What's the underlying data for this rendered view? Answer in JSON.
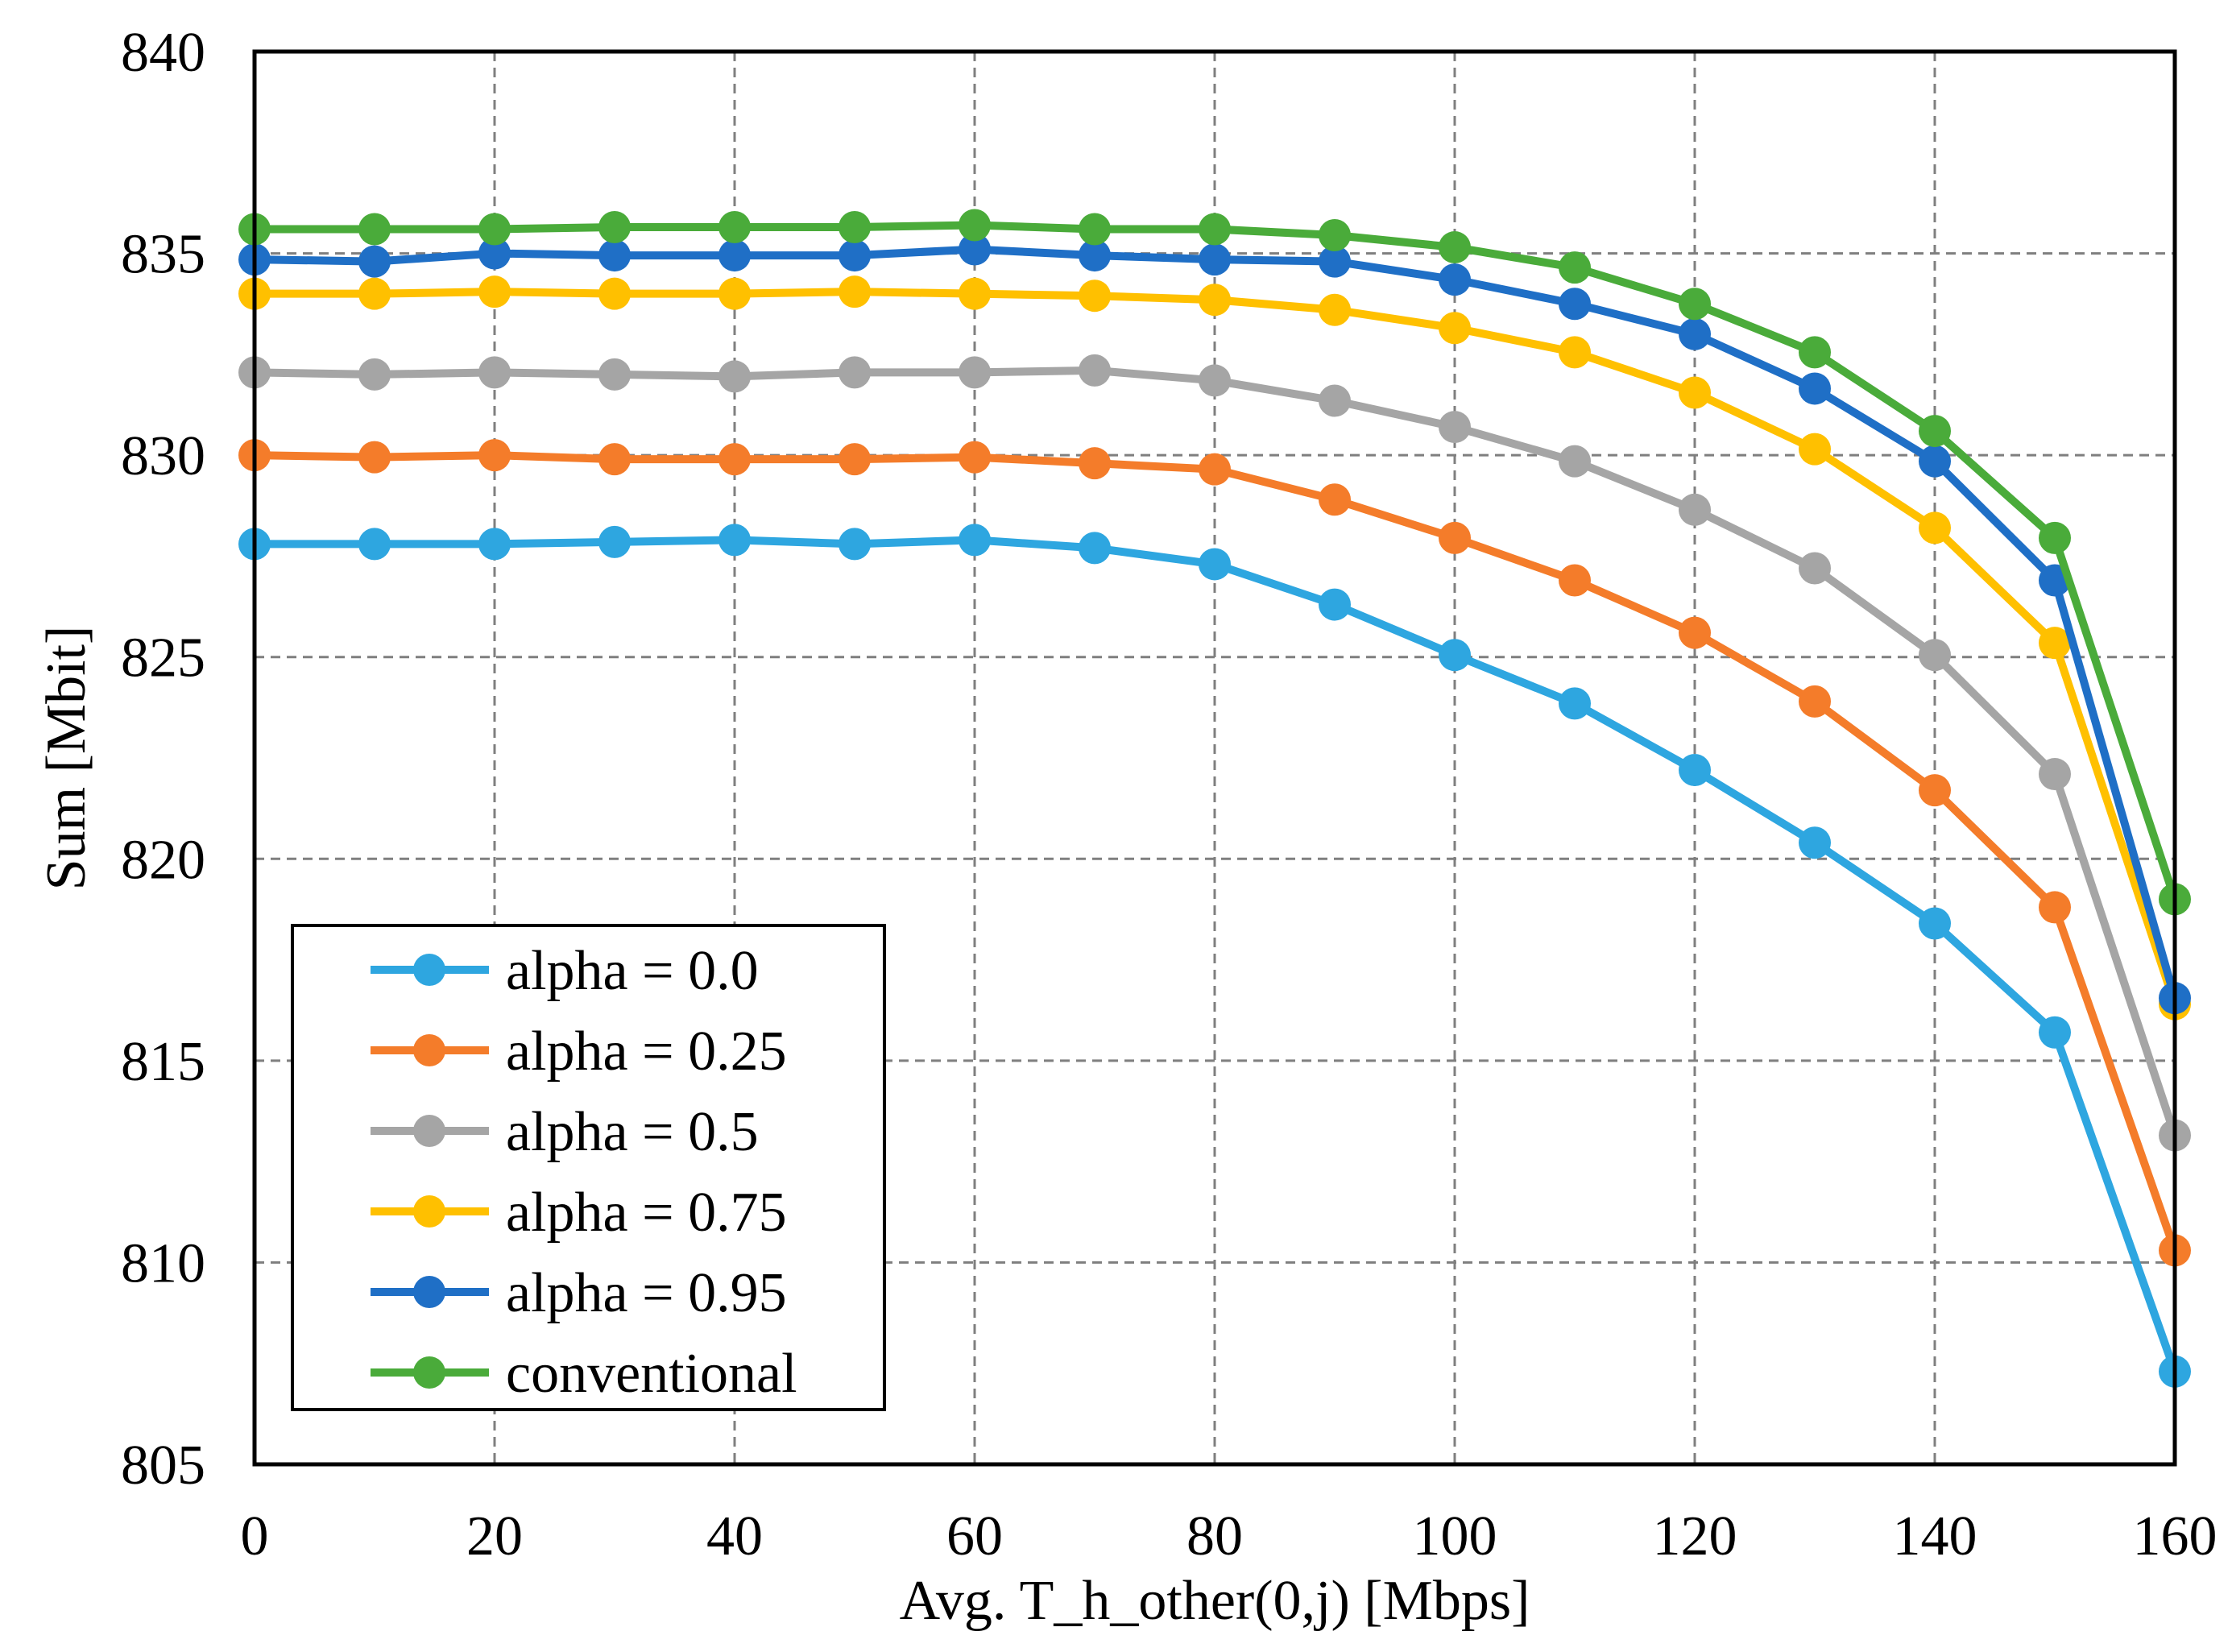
{
  "chart_data": {
    "type": "line",
    "title": "",
    "xlabel": "Avg. T_h_other(0,j) [Mbps]",
    "ylabel": "Sum [Mbit]",
    "xlim": [
      0,
      160
    ],
    "ylim": [
      805,
      840
    ],
    "xticks": [
      0,
      20,
      40,
      60,
      80,
      100,
      120,
      140,
      160
    ],
    "yticks": [
      805,
      810,
      815,
      820,
      825,
      830,
      835,
      840
    ],
    "grid": true,
    "legend_position": "bottom-left",
    "x": [
      0,
      10,
      20,
      30,
      40,
      50,
      60,
      70,
      80,
      90,
      100,
      110,
      120,
      130,
      140,
      150,
      160
    ],
    "series": [
      {
        "name": "alpha = 0.0",
        "color": "#2ea6e0",
        "values": [
          827.8,
          827.8,
          827.8,
          827.85,
          827.9,
          827.8,
          827.9,
          827.7,
          827.3,
          826.3,
          825.05,
          823.85,
          822.2,
          820.4,
          818.4,
          815.7,
          807.3
        ]
      },
      {
        "name": "alpha = 0.25",
        "color": "#f47c2a",
        "values": [
          830.0,
          829.95,
          830.0,
          829.9,
          829.9,
          829.9,
          829.95,
          829.8,
          829.65,
          828.9,
          827.95,
          826.9,
          825.6,
          823.9,
          821.7,
          818.8,
          810.3
        ]
      },
      {
        "name": "alpha = 0.5",
        "color": "#a5a5a5",
        "values": [
          832.05,
          832.0,
          832.05,
          832.0,
          831.95,
          832.05,
          832.05,
          832.1,
          831.85,
          831.35,
          830.7,
          829.85,
          828.65,
          827.2,
          825.05,
          822.1,
          813.15
        ]
      },
      {
        "name": "alpha = 0.75",
        "color": "#ffc000",
        "values": [
          834.0,
          834.0,
          834.05,
          834.0,
          834.0,
          834.05,
          834.0,
          833.95,
          833.85,
          833.6,
          833.15,
          832.55,
          831.55,
          830.15,
          828.2,
          825.35,
          816.4
        ]
      },
      {
        "name": "alpha = 0.95",
        "color": "#1f6fc6",
        "values": [
          834.85,
          834.8,
          835.0,
          834.95,
          834.95,
          834.95,
          835.1,
          834.95,
          834.85,
          834.8,
          834.35,
          833.75,
          833.0,
          831.65,
          829.85,
          826.9,
          816.55
        ]
      },
      {
        "name": "conventional",
        "color": "#4aab3a",
        "values": [
          835.6,
          835.6,
          835.6,
          835.65,
          835.65,
          835.65,
          835.7,
          835.6,
          835.6,
          835.45,
          835.15,
          834.65,
          833.75,
          832.55,
          830.6,
          827.95,
          819.0
        ]
      }
    ]
  }
}
